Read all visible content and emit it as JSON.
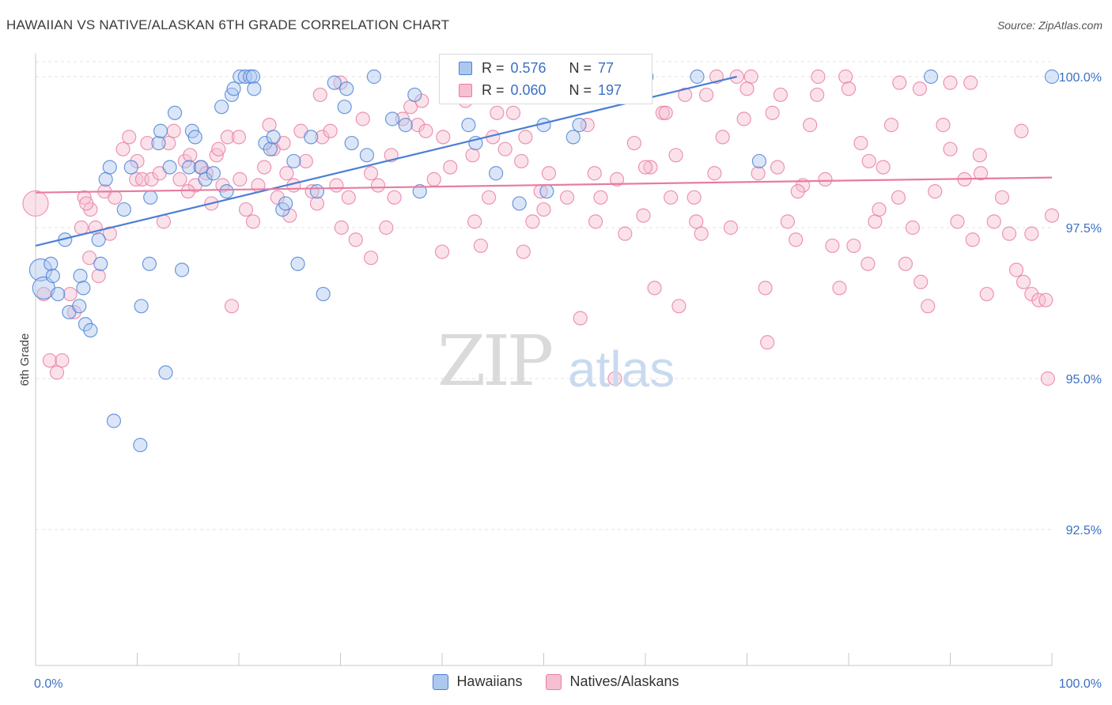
{
  "header": {
    "title": "HAWAIIAN VS NATIVE/ALASKAN 6TH GRADE CORRELATION CHART",
    "source": "Source: ZipAtlas.com"
  },
  "watermark": {
    "zip": "ZIP",
    "atlas": "atlas"
  },
  "legend": {
    "r_label": "R =",
    "n_label": "N =",
    "series": [
      {
        "r": "0.576",
        "n": "77",
        "color": "#4a7fd4",
        "fill": "#adc8ef"
      },
      {
        "r": "0.060",
        "n": "197",
        "color": "#e87ca0",
        "fill": "#f7bfd1"
      }
    ]
  },
  "bottom_legend": [
    "Hawaiians",
    "Natives/Alaskans"
  ],
  "chart_data": {
    "type": "scatter",
    "ylabel": "6th Grade",
    "xlim": [
      0,
      100
    ],
    "ylim": [
      90.3,
      100.4
    ],
    "x_tick_labels": [
      "0.0%",
      "100.0%"
    ],
    "y_ticks": [
      92.5,
      95.0,
      97.5,
      100.0
    ],
    "y_tick_labels": [
      "92.5%",
      "95.0%",
      "97.5%",
      "100.0%"
    ],
    "grid": true,
    "series": [
      {
        "name": "Hawaiians",
        "color": "#4a7fd4",
        "fill": "#adc8ef",
        "trend": [
          [
            0,
            97.2
          ],
          [
            69,
            100.0
          ]
        ],
        "points": [
          [
            0.5,
            96.8
          ],
          [
            0.8,
            96.5
          ],
          [
            1.5,
            96.9
          ],
          [
            1.7,
            96.7
          ],
          [
            2.2,
            96.4
          ],
          [
            2.9,
            97.3
          ],
          [
            3.3,
            96.1
          ],
          [
            4.4,
            96.7
          ],
          [
            4.3,
            96.2
          ],
          [
            4.7,
            96.5
          ],
          [
            4.9,
            95.9
          ],
          [
            5.4,
            95.8
          ],
          [
            6.4,
            96.9
          ],
          [
            6.2,
            97.3
          ],
          [
            6.9,
            98.3
          ],
          [
            7.3,
            98.5
          ],
          [
            7.7,
            94.3
          ],
          [
            8.7,
            97.8
          ],
          [
            9.4,
            98.5
          ],
          [
            10.3,
            93.9
          ],
          [
            10.4,
            96.2
          ],
          [
            11.2,
            96.9
          ],
          [
            11.3,
            98.0
          ],
          [
            12.1,
            98.9
          ],
          [
            12.3,
            99.1
          ],
          [
            12.8,
            95.1
          ],
          [
            13.2,
            98.5
          ],
          [
            13.7,
            99.4
          ],
          [
            14.4,
            96.8
          ],
          [
            15.1,
            98.5
          ],
          [
            15.4,
            99.1
          ],
          [
            15.7,
            99.0
          ],
          [
            16.3,
            98.5
          ],
          [
            16.7,
            98.3
          ],
          [
            17.5,
            98.4
          ],
          [
            18.3,
            99.5
          ],
          [
            18.8,
            98.1
          ],
          [
            19.3,
            99.7
          ],
          [
            19.5,
            99.8
          ],
          [
            20.1,
            100.0
          ],
          [
            20.6,
            100.0
          ],
          [
            21.1,
            100.0
          ],
          [
            21.4,
            100.0
          ],
          [
            21.5,
            99.8
          ],
          [
            22.6,
            98.9
          ],
          [
            23.1,
            98.8
          ],
          [
            23.4,
            99.0
          ],
          [
            24.3,
            97.8
          ],
          [
            24.6,
            97.9
          ],
          [
            25.4,
            98.6
          ],
          [
            25.8,
            96.9
          ],
          [
            27.1,
            99.0
          ],
          [
            27.7,
            98.1
          ],
          [
            28.3,
            96.4
          ],
          [
            29.4,
            99.9
          ],
          [
            30.6,
            99.8
          ],
          [
            30.4,
            99.5
          ],
          [
            31.1,
            98.9
          ],
          [
            32.6,
            98.7
          ],
          [
            33.3,
            100.0
          ],
          [
            35.1,
            99.3
          ],
          [
            36.4,
            99.2
          ],
          [
            37.3,
            99.7
          ],
          [
            37.8,
            98.1
          ],
          [
            42.6,
            99.2
          ],
          [
            43.3,
            98.9
          ],
          [
            45.3,
            98.4
          ],
          [
            47.6,
            97.9
          ],
          [
            50.0,
            99.2
          ],
          [
            50.3,
            98.1
          ],
          [
            52.9,
            99.0
          ],
          [
            53.5,
            99.2
          ],
          [
            60.1,
            100.0
          ],
          [
            65.1,
            100.0
          ],
          [
            71.2,
            98.6
          ],
          [
            88.1,
            100.0
          ],
          [
            100.0,
            100.0
          ]
        ]
      },
      {
        "name": "Natives/Alaskans",
        "color": "#e87ca0",
        "fill": "#f7bfd1",
        "trend": [
          [
            0,
            98.08
          ],
          [
            100,
            98.33
          ]
        ],
        "points": [
          [
            0,
            97.9
          ],
          [
            0.8,
            96.4
          ],
          [
            1.4,
            95.3
          ],
          [
            2.1,
            95.1
          ],
          [
            2.6,
            95.3
          ],
          [
            3.4,
            96.4
          ],
          [
            3.8,
            96.1
          ],
          [
            4.5,
            97.5
          ],
          [
            4.8,
            98.0
          ],
          [
            5.3,
            97.0
          ],
          [
            5.4,
            97.8
          ],
          [
            5.9,
            97.5
          ],
          [
            6.2,
            96.7
          ],
          [
            6.8,
            98.1
          ],
          [
            7.3,
            97.4
          ],
          [
            7.8,
            98.0
          ],
          [
            8.6,
            98.8
          ],
          [
            9.2,
            99.0
          ],
          [
            9.9,
            98.3
          ],
          [
            10.5,
            98.3
          ],
          [
            11.0,
            98.9
          ],
          [
            11.4,
            98.3
          ],
          [
            12.2,
            98.4
          ],
          [
            12.6,
            97.6
          ],
          [
            13.1,
            98.9
          ],
          [
            13.6,
            99.1
          ],
          [
            14.2,
            98.3
          ],
          [
            14.7,
            98.6
          ],
          [
            15.2,
            98.7
          ],
          [
            15.7,
            98.2
          ],
          [
            16.2,
            98.5
          ],
          [
            16.8,
            98.4
          ],
          [
            17.3,
            97.9
          ],
          [
            17.8,
            98.7
          ],
          [
            18.4,
            98.2
          ],
          [
            18.9,
            99.0
          ],
          [
            19.3,
            96.2
          ],
          [
            20.1,
            98.3
          ],
          [
            20.7,
            97.8
          ],
          [
            21.4,
            97.6
          ],
          [
            21.9,
            98.2
          ],
          [
            22.5,
            98.5
          ],
          [
            23.0,
            99.2
          ],
          [
            23.4,
            98.8
          ],
          [
            23.8,
            98.0
          ],
          [
            24.4,
            98.9
          ],
          [
            24.7,
            98.4
          ],
          [
            25.4,
            98.2
          ],
          [
            26.1,
            99.1
          ],
          [
            26.6,
            98.6
          ],
          [
            27.2,
            98.1
          ],
          [
            27.7,
            97.9
          ],
          [
            28.2,
            99.0
          ],
          [
            29.0,
            99.1
          ],
          [
            29.6,
            98.2
          ],
          [
            30.1,
            97.5
          ],
          [
            30.8,
            98.0
          ],
          [
            31.5,
            97.3
          ],
          [
            32.2,
            99.3
          ],
          [
            33.0,
            98.4
          ],
          [
            33.7,
            98.2
          ],
          [
            34.5,
            97.5
          ],
          [
            35.3,
            98.0
          ],
          [
            36.1,
            99.3
          ],
          [
            36.9,
            99.5
          ],
          [
            37.6,
            99.2
          ],
          [
            38.4,
            99.1
          ],
          [
            39.2,
            98.3
          ],
          [
            40.1,
            99.0
          ],
          [
            40.8,
            98.5
          ],
          [
            41.6,
            99.8
          ],
          [
            42.3,
            99.6
          ],
          [
            43.2,
            97.6
          ],
          [
            43.8,
            97.2
          ],
          [
            44.6,
            98.0
          ],
          [
            45.4,
            99.4
          ],
          [
            46.2,
            98.8
          ],
          [
            47.0,
            99.4
          ],
          [
            47.8,
            98.6
          ],
          [
            48.2,
            99.0
          ],
          [
            48.9,
            97.6
          ],
          [
            49.7,
            98.1
          ],
          [
            50.5,
            98.4
          ],
          [
            51.5,
            99.8
          ],
          [
            52.3,
            98.0
          ],
          [
            53.1,
            99.7
          ],
          [
            53.6,
            96.0
          ],
          [
            54.3,
            99.2
          ],
          [
            55.1,
            97.6
          ],
          [
            55.6,
            98.0
          ],
          [
            56.4,
            99.8
          ],
          [
            57.2,
            98.3
          ],
          [
            58.0,
            97.4
          ],
          [
            58.9,
            98.9
          ],
          [
            59.8,
            97.7
          ],
          [
            60.5,
            98.5
          ],
          [
            60.9,
            96.5
          ],
          [
            61.7,
            99.4
          ],
          [
            62.5,
            98.0
          ],
          [
            63.3,
            96.2
          ],
          [
            63.9,
            99.7
          ],
          [
            64.8,
            98.0
          ],
          [
            65.5,
            97.4
          ],
          [
            66.0,
            99.7
          ],
          [
            66.8,
            98.4
          ],
          [
            67.6,
            99.0
          ],
          [
            68.4,
            97.5
          ],
          [
            69.0,
            100.0
          ],
          [
            69.7,
            99.3
          ],
          [
            70.4,
            100.0
          ],
          [
            71.1,
            98.4
          ],
          [
            71.8,
            96.5
          ],
          [
            72.5,
            99.4
          ],
          [
            73.3,
            99.7
          ],
          [
            74.0,
            97.6
          ],
          [
            74.8,
            97.3
          ],
          [
            75.5,
            98.2
          ],
          [
            76.2,
            99.2
          ],
          [
            76.9,
            99.7
          ],
          [
            77.7,
            98.3
          ],
          [
            78.4,
            97.2
          ],
          [
            79.1,
            96.5
          ],
          [
            79.7,
            100.0
          ],
          [
            80.5,
            97.2
          ],
          [
            81.2,
            98.9
          ],
          [
            81.9,
            96.9
          ],
          [
            82.6,
            97.6
          ],
          [
            83.4,
            98.5
          ],
          [
            84.2,
            99.2
          ],
          [
            84.9,
            98.0
          ],
          [
            85.6,
            96.9
          ],
          [
            86.3,
            97.5
          ],
          [
            87.1,
            96.6
          ],
          [
            87.8,
            96.2
          ],
          [
            88.5,
            98.1
          ],
          [
            89.3,
            99.2
          ],
          [
            90.0,
            98.8
          ],
          [
            90.7,
            97.6
          ],
          [
            91.4,
            98.3
          ],
          [
            92.2,
            97.3
          ],
          [
            92.9,
            98.7
          ],
          [
            93.6,
            96.4
          ],
          [
            94.3,
            97.6
          ],
          [
            95.1,
            98.0
          ],
          [
            95.8,
            97.4
          ],
          [
            96.5,
            96.8
          ],
          [
            97.2,
            96.6
          ],
          [
            98.0,
            96.4
          ],
          [
            98.7,
            96.3
          ],
          [
            99.4,
            96.3
          ],
          [
            100.0,
            97.7
          ],
          [
            99.6,
            95.0
          ],
          [
            20.0,
            99.0
          ],
          [
            30.0,
            99.9
          ],
          [
            40.0,
            97.1
          ],
          [
            50.0,
            97.8
          ],
          [
            60.0,
            98.5
          ],
          [
            70.0,
            99.8
          ],
          [
            80.0,
            99.8
          ],
          [
            90.0,
            99.9
          ],
          [
            45.0,
            99.0
          ],
          [
            55.0,
            98.4
          ],
          [
            65.0,
            97.6
          ],
          [
            75.0,
            98.1
          ],
          [
            85.0,
            99.9
          ],
          [
            35.0,
            98.7
          ],
          [
            25.0,
            97.7
          ],
          [
            15.0,
            98.1
          ],
          [
            10.0,
            98.6
          ],
          [
            5.0,
            97.9
          ],
          [
            57.0,
            95.0
          ],
          [
            72.0,
            95.6
          ],
          [
            48.0,
            97.1
          ],
          [
            38.0,
            99.6
          ],
          [
            28.0,
            99.7
          ],
          [
            18.0,
            98.8
          ],
          [
            62.0,
            99.4
          ],
          [
            82.0,
            98.6
          ],
          [
            92.0,
            99.9
          ],
          [
            97.0,
            99.1
          ],
          [
            67.0,
            100.0
          ],
          [
            77.0,
            100.0
          ],
          [
            87.0,
            99.8
          ],
          [
            33.0,
            97.0
          ],
          [
            43.0,
            98.7
          ],
          [
            53.0,
            99.9
          ],
          [
            63.0,
            98.7
          ],
          [
            73.0,
            98.5
          ],
          [
            83.0,
            97.8
          ],
          [
            93.0,
            98.4
          ],
          [
            98.0,
            97.4
          ]
        ]
      }
    ]
  }
}
